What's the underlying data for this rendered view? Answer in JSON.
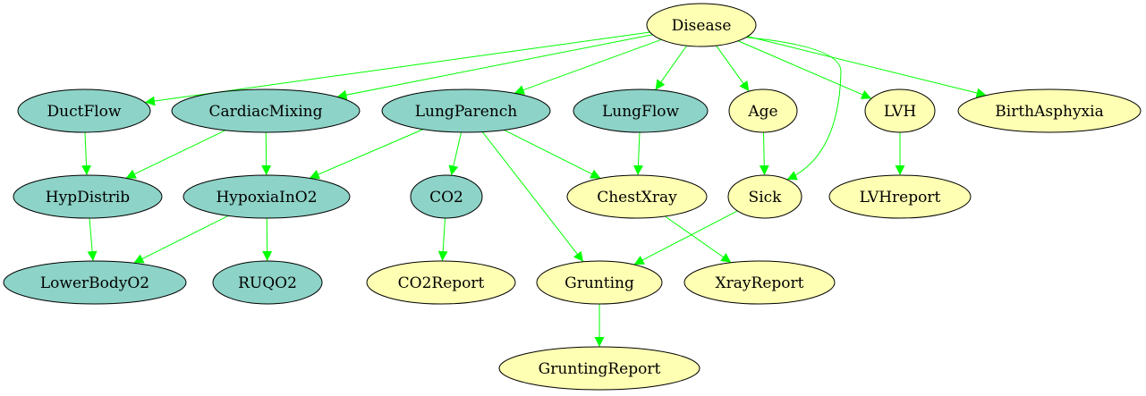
{
  "colors": {
    "edge": "#00ff00",
    "latent_fill": "#8dd3c7",
    "observed_fill": "#ffffb3",
    "stroke": "#000000",
    "background": "#ffffff"
  },
  "nodes": [
    {
      "id": "Disease",
      "label": "Disease",
      "kind": "observed"
    },
    {
      "id": "DuctFlow",
      "label": "DuctFlow",
      "kind": "latent"
    },
    {
      "id": "CardiacMixing",
      "label": "CardiacMixing",
      "kind": "latent"
    },
    {
      "id": "LungParench",
      "label": "LungParench",
      "kind": "latent"
    },
    {
      "id": "LungFlow",
      "label": "LungFlow",
      "kind": "latent"
    },
    {
      "id": "Age",
      "label": "Age",
      "kind": "observed"
    },
    {
      "id": "LVH",
      "label": "LVH",
      "kind": "observed"
    },
    {
      "id": "BirthAsphyxia",
      "label": "BirthAsphyxia",
      "kind": "observed"
    },
    {
      "id": "HypDistrib",
      "label": "HypDistrib",
      "kind": "latent"
    },
    {
      "id": "HypoxiaInO2",
      "label": "HypoxiaInO2",
      "kind": "latent"
    },
    {
      "id": "CO2",
      "label": "CO2",
      "kind": "latent"
    },
    {
      "id": "ChestXray",
      "label": "ChestXray",
      "kind": "observed"
    },
    {
      "id": "Sick",
      "label": "Sick",
      "kind": "observed"
    },
    {
      "id": "LVHreport",
      "label": "LVHreport",
      "kind": "observed"
    },
    {
      "id": "LowerBodyO2",
      "label": "LowerBodyO2",
      "kind": "latent"
    },
    {
      "id": "RUQO2",
      "label": "RUQO2",
      "kind": "latent"
    },
    {
      "id": "CO2Report",
      "label": "CO2Report",
      "kind": "observed"
    },
    {
      "id": "Grunting",
      "label": "Grunting",
      "kind": "observed"
    },
    {
      "id": "XrayReport",
      "label": "XrayReport",
      "kind": "observed"
    },
    {
      "id": "GruntingReport",
      "label": "GruntingReport",
      "kind": "observed"
    }
  ],
  "edges": [
    [
      "Disease",
      "DuctFlow"
    ],
    [
      "Disease",
      "CardiacMixing"
    ],
    [
      "Disease",
      "LungParench"
    ],
    [
      "Disease",
      "LungFlow"
    ],
    [
      "Disease",
      "Age"
    ],
    [
      "Disease",
      "LVH"
    ],
    [
      "Disease",
      "BirthAsphyxia"
    ],
    [
      "Disease",
      "Sick"
    ],
    [
      "DuctFlow",
      "HypDistrib"
    ],
    [
      "CardiacMixing",
      "HypDistrib"
    ],
    [
      "CardiacMixing",
      "HypoxiaInO2"
    ],
    [
      "LungParench",
      "HypoxiaInO2"
    ],
    [
      "LungParench",
      "CO2"
    ],
    [
      "LungParench",
      "ChestXray"
    ],
    [
      "LungParench",
      "Grunting"
    ],
    [
      "LungFlow",
      "ChestXray"
    ],
    [
      "Age",
      "Sick"
    ],
    [
      "LVH",
      "LVHreport"
    ],
    [
      "HypDistrib",
      "LowerBodyO2"
    ],
    [
      "HypoxiaInO2",
      "LowerBodyO2"
    ],
    [
      "HypoxiaInO2",
      "RUQO2"
    ],
    [
      "CO2",
      "CO2Report"
    ],
    [
      "ChestXray",
      "XrayReport"
    ],
    [
      "Sick",
      "Grunting"
    ],
    [
      "Grunting",
      "GruntingReport"
    ]
  ]
}
